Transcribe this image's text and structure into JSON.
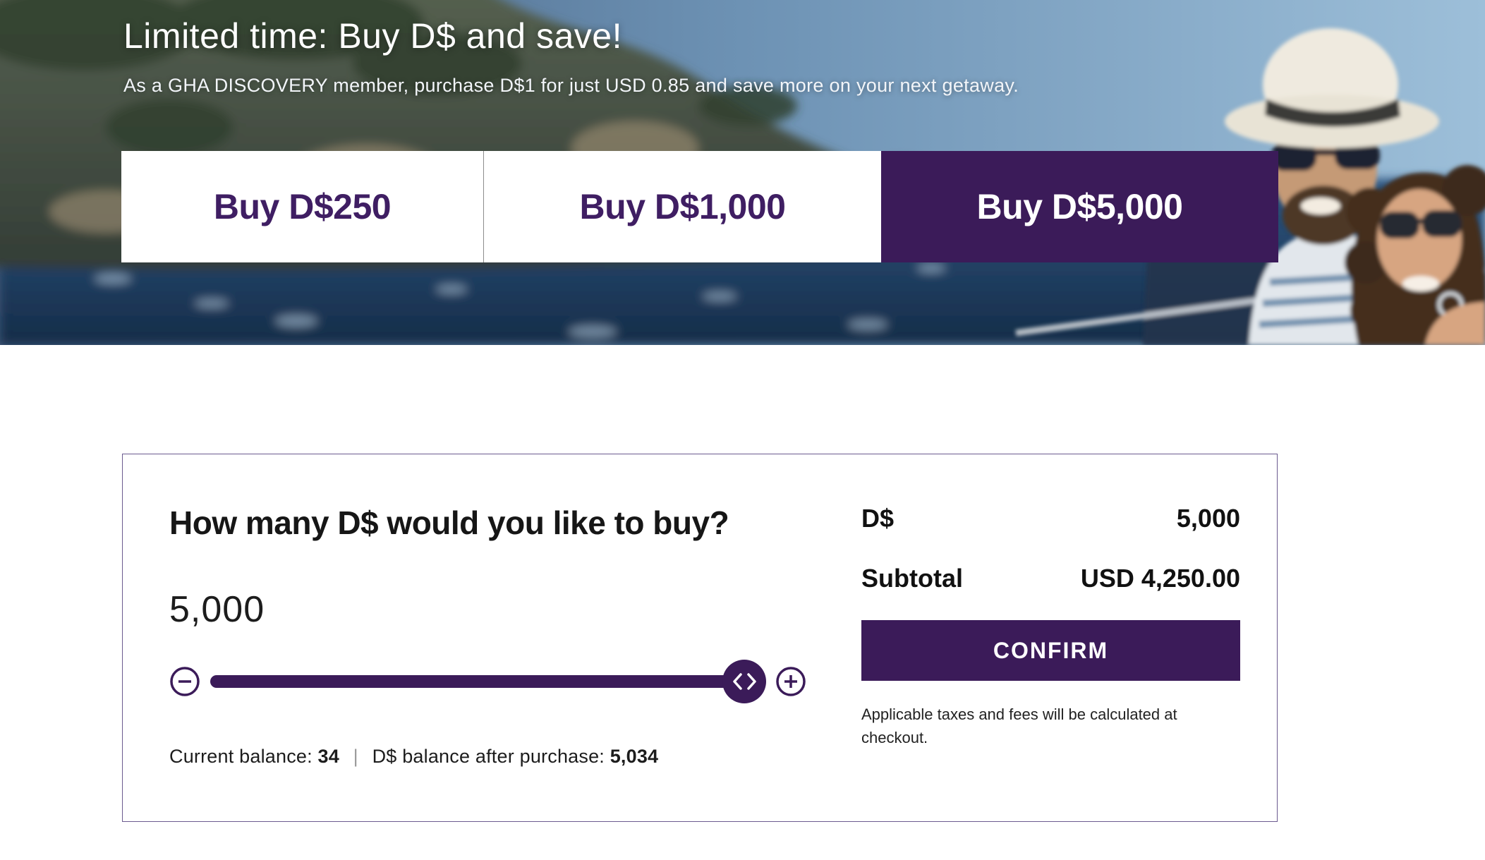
{
  "hero": {
    "title": "Limited time: Buy D$ and save!",
    "subtitle": "As a GHA DISCOVERY member, purchase D$1 for just USD 0.85 and save more on your next getaway.",
    "image_alt": "couple-on-boat-by-coastal-cliffs-photo",
    "denominations": [
      {
        "label": "Buy D$250",
        "selected": false
      },
      {
        "label": "Buy D$1,000",
        "selected": false
      },
      {
        "label": "Buy D$5,000",
        "selected": true
      }
    ]
  },
  "purchase": {
    "heading": "How many D$ would you like to buy?",
    "amount_value": "5,000",
    "slider": {
      "value_percent": 100,
      "minus_icon": "minus-circle",
      "plus_icon": "plus-circle",
      "handle_icon": "left-right-chevrons"
    },
    "balance": {
      "current_label": "Current balance:",
      "current_value": "34",
      "separator": "|",
      "after_label": "D$ balance after purchase:",
      "after_value": "5,034"
    },
    "summary": {
      "currency_label": "D$",
      "currency_value": "5,000",
      "subtotal_label": "Subtotal",
      "subtotal_value": "USD 4,250.00",
      "confirm_label": "CONFIRM",
      "note": "Applicable taxes and fees will be calculated at\ncheckout."
    }
  },
  "colors": {
    "brand_purple": "#3b1b59",
    "button_text_purple": "#3f1e63",
    "divider_gray": "#8c8c8c",
    "card_border": "#6b5a8f"
  }
}
